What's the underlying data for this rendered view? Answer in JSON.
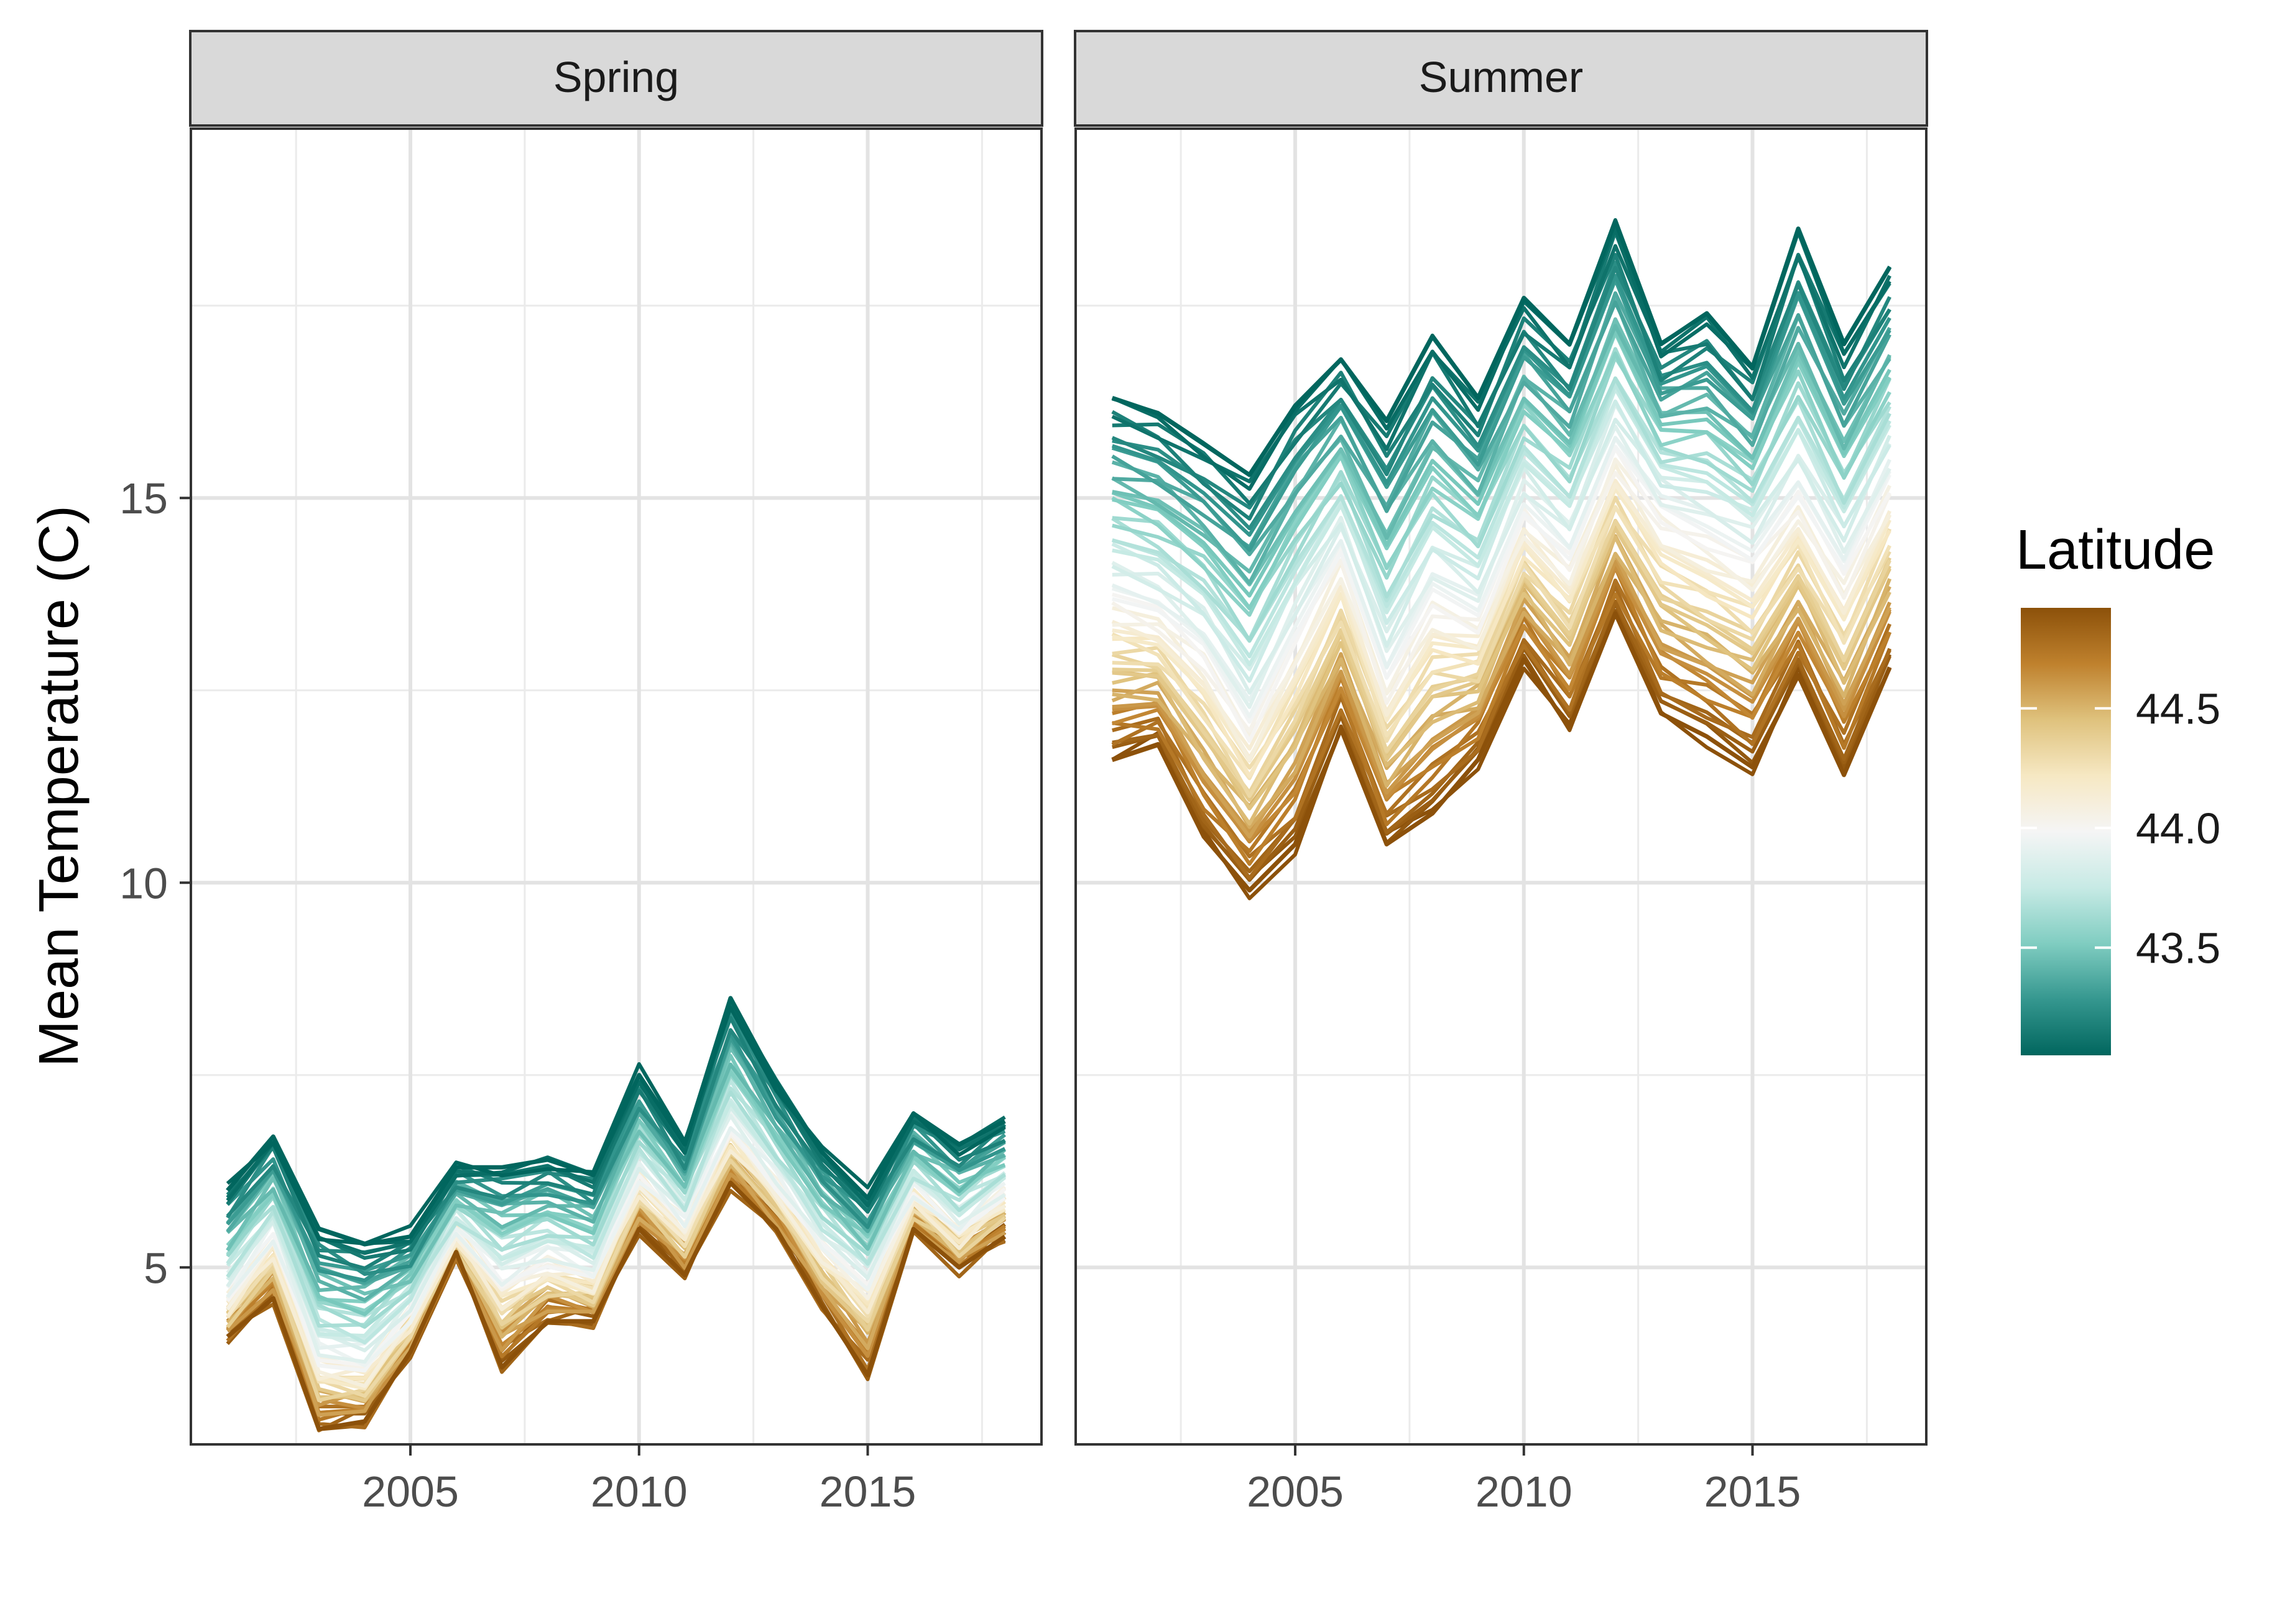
{
  "chart_data": {
    "type": "line",
    "ylabel": "Mean Temperature (C)",
    "xlabel": "",
    "x": [
      2001,
      2002,
      2003,
      2004,
      2005,
      2006,
      2007,
      2008,
      2009,
      2010,
      2011,
      2012,
      2013,
      2014,
      2015,
      2016,
      2017,
      2018
    ],
    "xlim": [
      2000.2,
      2018.8
    ],
    "ylim": [
      2.7,
      19.8
    ],
    "x_ticks": [
      2005,
      2010,
      2015
    ],
    "y_ticks": [
      5,
      10,
      15
    ],
    "grid": true,
    "legend": {
      "title": "Latitude",
      "position": "right",
      "type": "colorbar",
      "range": [
        43.05,
        44.92
      ],
      "ticks": [
        43.5,
        44.0,
        44.5
      ],
      "colors": [
        "#01665e",
        "#35978f",
        "#80cdc1",
        "#c7eae5",
        "#f5f5f5",
        "#f6e8c3",
        "#dfc27d",
        "#bf812d",
        "#8c510a"
      ]
    },
    "panels": [
      {
        "name": "Spring",
        "envelope": {
          "high_latitude_series": [
            4.1,
            4.6,
            2.9,
            3.0,
            3.9,
            5.2,
            3.7,
            4.3,
            4.3,
            5.5,
            4.9,
            6.1,
            5.5,
            4.5,
            3.6,
            5.5,
            5.0,
            5.4
          ],
          "mid_latitude_series": [
            4.6,
            5.4,
            3.8,
            3.7,
            4.4,
            5.5,
            4.8,
            5.1,
            4.9,
            6.2,
            5.6,
            6.8,
            6.1,
            5.3,
            4.8,
            6.0,
            5.5,
            6.0
          ],
          "low_latitude_series": [
            6.0,
            6.7,
            5.5,
            5.3,
            5.4,
            6.3,
            6.3,
            6.4,
            6.2,
            7.5,
            6.6,
            8.5,
            7.4,
            6.5,
            5.9,
            7.0,
            6.6,
            6.9
          ]
        }
      },
      {
        "name": "Summer",
        "envelope": {
          "high_latitude_series": [
            11.6,
            11.8,
            10.6,
            9.9,
            10.5,
            12.0,
            10.5,
            10.9,
            11.6,
            12.9,
            12.0,
            13.5,
            12.2,
            11.9,
            11.5,
            12.7,
            11.4,
            12.8
          ],
          "mid_latitude_series": [
            13.7,
            13.5,
            13.0,
            12.0,
            13.2,
            14.3,
            12.6,
            13.7,
            13.4,
            14.8,
            14.2,
            15.6,
            14.8,
            14.5,
            14.2,
            15.0,
            14.0,
            15.2
          ],
          "low_latitude_series": [
            16.3,
            16.1,
            15.7,
            15.3,
            16.2,
            16.8,
            16.0,
            17.1,
            16.3,
            17.6,
            17.0,
            18.6,
            17.0,
            17.4,
            16.7,
            18.5,
            17.0,
            18.0
          ]
        }
      }
    ]
  }
}
